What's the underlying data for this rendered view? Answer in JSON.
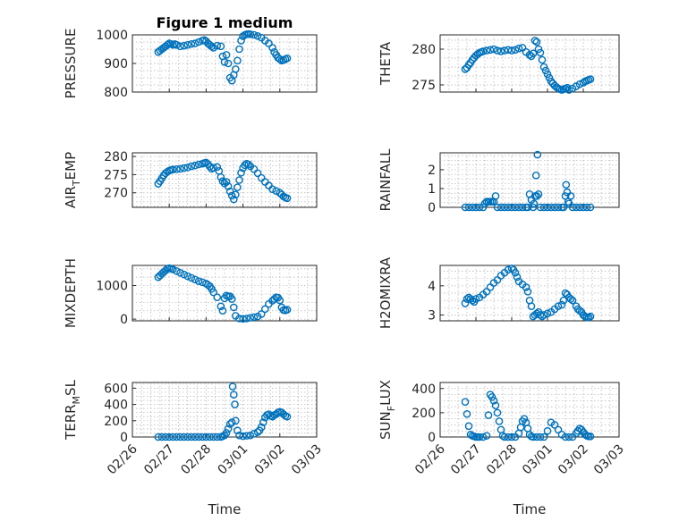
{
  "figure": {
    "title": "Figure 1 medium",
    "xlabel": "Time",
    "colors": {
      "marker": "#0072BD",
      "axis": "#262626",
      "grid": "#b0b0b0"
    },
    "x_tick_labels": [
      "02/26",
      "02/27",
      "02/28",
      "03/01",
      "03/02",
      "03/03"
    ]
  },
  "chart_data": [
    {
      "type": "scatter",
      "ylabel": "PRESSURE",
      "title": "Figure 1 medium",
      "xlim": [
        0,
        5
      ],
      "ylim": [
        800,
        1000
      ],
      "yticks": [
        800,
        900,
        1000
      ],
      "grid": true,
      "x": [
        0.7,
        0.75,
        0.8,
        0.85,
        0.9,
        0.95,
        1.0,
        1.05,
        1.1,
        1.15,
        1.2,
        1.3,
        1.4,
        1.5,
        1.6,
        1.7,
        1.8,
        1.9,
        1.95,
        2.0,
        2.05,
        2.1,
        2.15,
        2.2,
        2.3,
        2.4,
        2.45,
        2.5,
        2.55,
        2.6,
        2.65,
        2.7,
        2.75,
        2.8,
        2.85,
        2.9,
        2.95,
        3.0,
        3.05,
        3.1,
        3.15,
        3.2,
        3.3,
        3.4,
        3.5,
        3.6,
        3.7,
        3.8,
        3.85,
        3.9,
        3.95,
        4.0,
        4.05,
        4.1,
        4.15,
        4.2
      ],
      "y": [
        940,
        945,
        950,
        955,
        960,
        965,
        970,
        968,
        965,
        968,
        965,
        960,
        962,
        965,
        968,
        970,
        975,
        980,
        982,
        978,
        970,
        965,
        960,
        955,
        962,
        960,
        925,
        905,
        930,
        900,
        850,
        840,
        860,
        880,
        910,
        950,
        980,
        995,
        1000,
        1002,
        1003,
        1002,
        1000,
        996,
        990,
        980,
        970,
        955,
        940,
        930,
        920,
        915,
        910,
        912,
        915,
        918
      ]
    },
    {
      "type": "scatter",
      "ylabel": "THETA",
      "xlim": [
        0,
        5
      ],
      "ylim": [
        274,
        282
      ],
      "yticks": [
        275,
        280
      ],
      "grid": true,
      "x": [
        0.7,
        0.75,
        0.8,
        0.85,
        0.9,
        0.95,
        1.0,
        1.05,
        1.1,
        1.15,
        1.2,
        1.3,
        1.4,
        1.5,
        1.6,
        1.7,
        1.8,
        1.9,
        2.0,
        2.1,
        2.2,
        2.3,
        2.4,
        2.5,
        2.55,
        2.6,
        2.65,
        2.7,
        2.75,
        2.8,
        2.85,
        2.9,
        2.95,
        3.0,
        3.05,
        3.1,
        3.15,
        3.2,
        3.25,
        3.3,
        3.35,
        3.4,
        3.45,
        3.5,
        3.55,
        3.6,
        3.7,
        3.8,
        3.9,
        4.0,
        4.05,
        4.1,
        4.15,
        4.2
      ],
      "y": [
        277.2,
        277.4,
        277.8,
        278.1,
        278.5,
        278.8,
        279.1,
        279.3,
        279.5,
        279.6,
        279.7,
        279.8,
        279.9,
        280.0,
        279.8,
        279.7,
        279.8,
        279.9,
        279.8,
        279.9,
        280.1,
        280.2,
        279.6,
        279.2,
        279.0,
        279.4,
        281.2,
        281.0,
        280.0,
        279.5,
        278.5,
        277.5,
        277.0,
        276.5,
        276.0,
        275.5,
        275.2,
        274.9,
        274.7,
        274.5,
        274.4,
        274.3,
        274.4,
        274.5,
        274.6,
        274.3,
        274.5,
        274.8,
        275.1,
        275.3,
        275.5,
        275.6,
        275.7,
        275.8
      ]
    },
    {
      "type": "scatter",
      "ylabel": "AIR_TEMP",
      "xlim": [
        0,
        5
      ],
      "ylim": [
        266,
        281
      ],
      "yticks": [
        270,
        275,
        280
      ],
      "grid": true,
      "x": [
        0.7,
        0.75,
        0.8,
        0.85,
        0.9,
        0.95,
        1.0,
        1.05,
        1.1,
        1.2,
        1.3,
        1.4,
        1.5,
        1.6,
        1.7,
        1.8,
        1.9,
        1.95,
        2.0,
        2.05,
        2.1,
        2.15,
        2.2,
        2.3,
        2.35,
        2.4,
        2.45,
        2.5,
        2.55,
        2.6,
        2.65,
        2.7,
        2.75,
        2.8,
        2.85,
        2.9,
        2.95,
        3.0,
        3.05,
        3.1,
        3.15,
        3.2,
        3.3,
        3.4,
        3.5,
        3.6,
        3.7,
        3.8,
        3.9,
        4.0,
        4.05,
        4.1,
        4.15,
        4.2
      ],
      "y": [
        272.5,
        273.2,
        274.0,
        274.8,
        275.4,
        275.8,
        276.1,
        276.3,
        276.4,
        276.5,
        276.6,
        276.8,
        277.0,
        277.3,
        277.5,
        277.8,
        278.0,
        278.2,
        278.3,
        277.9,
        277.2,
        276.6,
        276.9,
        277.1,
        276.0,
        274.3,
        273.2,
        272.6,
        273.0,
        271.8,
        270.4,
        269.2,
        268.2,
        269.5,
        271.5,
        273.5,
        275.5,
        276.8,
        277.6,
        278.0,
        277.8,
        277.3,
        276.5,
        275.4,
        274.1,
        273.0,
        272.0,
        271.0,
        270.5,
        270.0,
        269.5,
        269.0,
        268.7,
        268.5
      ]
    },
    {
      "type": "scatter",
      "ylabel": "RAINFALL",
      "xlim": [
        0,
        5
      ],
      "ylim": [
        0,
        2.9
      ],
      "yticks": [
        0,
        1,
        2
      ],
      "grid": true,
      "x": [
        0.7,
        0.8,
        0.9,
        1.0,
        1.1,
        1.2,
        1.25,
        1.3,
        1.35,
        1.4,
        1.45,
        1.5,
        1.55,
        1.6,
        1.7,
        1.8,
        1.9,
        2.0,
        2.1,
        2.2,
        2.3,
        2.4,
        2.45,
        2.5,
        2.55,
        2.6,
        2.62,
        2.65,
        2.68,
        2.7,
        2.72,
        2.75,
        2.8,
        2.9,
        3.0,
        3.1,
        3.2,
        3.3,
        3.4,
        3.45,
        3.5,
        3.52,
        3.55,
        3.58,
        3.6,
        3.65,
        3.7,
        3.8,
        3.9,
        4.0,
        4.1,
        4.2
      ],
      "y": [
        0,
        0,
        0,
        0,
        0,
        0,
        0.2,
        0.3,
        0.3,
        0.3,
        0.3,
        0.3,
        0.6,
        0,
        0,
        0,
        0,
        0,
        0,
        0,
        0,
        0,
        0,
        0.7,
        0.4,
        0,
        0.2,
        0.6,
        1.7,
        0.6,
        2.8,
        0.7,
        0,
        0,
        0,
        0,
        0,
        0,
        0,
        0,
        0.6,
        1.2,
        0.8,
        0.3,
        0.2,
        0.6,
        0,
        0,
        0,
        0,
        0,
        0
      ]
    },
    {
      "type": "scatter",
      "ylabel": "MIXDEPTH",
      "xlim": [
        0,
        5
      ],
      "ylim": [
        -50,
        1600
      ],
      "yticks": [
        0,
        1000
      ],
      "grid": true,
      "x": [
        0.7,
        0.75,
        0.8,
        0.85,
        0.9,
        0.95,
        1.0,
        1.05,
        1.1,
        1.2,
        1.3,
        1.4,
        1.5,
        1.6,
        1.7,
        1.8,
        1.9,
        2.0,
        2.05,
        2.1,
        2.15,
        2.2,
        2.3,
        2.4,
        2.45,
        2.5,
        2.55,
        2.6,
        2.65,
        2.7,
        2.75,
        2.8,
        2.9,
        3.0,
        3.1,
        3.2,
        3.3,
        3.4,
        3.5,
        3.6,
        3.7,
        3.8,
        3.85,
        3.9,
        3.95,
        4.0,
        4.05,
        4.1,
        4.15,
        4.2
      ],
      "y": [
        1250,
        1300,
        1350,
        1400,
        1450,
        1500,
        1520,
        1500,
        1480,
        1430,
        1380,
        1330,
        1280,
        1230,
        1180,
        1130,
        1100,
        1060,
        1020,
        980,
        900,
        800,
        650,
        380,
        250,
        620,
        700,
        680,
        680,
        600,
        350,
        100,
        20,
        10,
        20,
        40,
        60,
        80,
        150,
        300,
        450,
        550,
        600,
        650,
        640,
        560,
        350,
        270,
        260,
        280
      ]
    },
    {
      "type": "scatter",
      "ylabel": "H2OMIXRA",
      "xlim": [
        0,
        5
      ],
      "ylim": [
        2.8,
        4.7
      ],
      "yticks": [
        3,
        4
      ],
      "grid": true,
      "x": [
        0.7,
        0.75,
        0.8,
        0.85,
        0.9,
        0.95,
        1.0,
        1.1,
        1.2,
        1.3,
        1.4,
        1.5,
        1.6,
        1.7,
        1.8,
        1.9,
        2.0,
        2.05,
        2.1,
        2.15,
        2.2,
        2.3,
        2.4,
        2.45,
        2.5,
        2.55,
        2.6,
        2.65,
        2.7,
        2.75,
        2.8,
        2.85,
        2.9,
        3.0,
        3.1,
        3.2,
        3.3,
        3.4,
        3.45,
        3.5,
        3.55,
        3.6,
        3.65,
        3.7,
        3.8,
        3.85,
        3.9,
        3.95,
        4.0,
        4.05,
        4.1,
        4.15,
        4.2
      ],
      "y": [
        3.4,
        3.55,
        3.6,
        3.55,
        3.5,
        3.45,
        3.55,
        3.6,
        3.7,
        3.8,
        3.95,
        4.1,
        4.2,
        4.35,
        4.45,
        4.55,
        4.6,
        4.55,
        4.45,
        4.3,
        4.15,
        4.05,
        3.95,
        3.8,
        3.5,
        3.3,
        2.95,
        3.0,
        3.05,
        3.1,
        3.0,
        2.95,
        3.0,
        3.05,
        3.1,
        3.2,
        3.3,
        3.35,
        3.5,
        3.75,
        3.7,
        3.6,
        3.55,
        3.5,
        3.3,
        3.2,
        3.15,
        3.1,
        3.0,
        2.95,
        2.92,
        2.92,
        2.95
      ]
    },
    {
      "type": "scatter",
      "ylabel": "TERR_MSL",
      "xlim": [
        0,
        5
      ],
      "ylim": [
        0,
        670
      ],
      "yticks": [
        0,
        200,
        400,
        600
      ],
      "grid": true,
      "x": [
        0.7,
        0.8,
        0.9,
        1.0,
        1.1,
        1.2,
        1.3,
        1.4,
        1.5,
        1.6,
        1.7,
        1.8,
        1.9,
        2.0,
        2.1,
        2.2,
        2.3,
        2.4,
        2.45,
        2.5,
        2.55,
        2.6,
        2.65,
        2.7,
        2.72,
        2.75,
        2.78,
        2.8,
        2.85,
        2.9,
        3.0,
        3.1,
        3.2,
        3.3,
        3.4,
        3.45,
        3.5,
        3.55,
        3.6,
        3.65,
        3.7,
        3.75,
        3.8,
        3.85,
        3.9,
        3.95,
        4.0,
        4.05,
        4.1,
        4.15,
        4.2
      ],
      "y": [
        0,
        0,
        0,
        0,
        0,
        0,
        0,
        0,
        0,
        0,
        0,
        0,
        0,
        0,
        0,
        0,
        0,
        0,
        10,
        20,
        50,
        100,
        160,
        180,
        620,
        520,
        400,
        200,
        80,
        20,
        10,
        15,
        20,
        40,
        60,
        80,
        120,
        180,
        240,
        270,
        280,
        260,
        250,
        270,
        280,
        300,
        310,
        300,
        280,
        260,
        250
      ]
    },
    {
      "type": "scatter",
      "ylabel": "SUN_FLUX",
      "xlim": [
        0,
        5
      ],
      "ylim": [
        0,
        450
      ],
      "yticks": [
        0,
        200,
        400
      ],
      "grid": true,
      "x": [
        0.7,
        0.75,
        0.8,
        0.85,
        0.9,
        0.95,
        1.0,
        1.05,
        1.1,
        1.2,
        1.3,
        1.35,
        1.4,
        1.45,
        1.5,
        1.55,
        1.6,
        1.65,
        1.7,
        1.75,
        1.8,
        1.9,
        2.0,
        2.1,
        2.2,
        2.25,
        2.3,
        2.35,
        2.4,
        2.45,
        2.5,
        2.55,
        2.6,
        2.7,
        2.8,
        2.9,
        3.0,
        3.1,
        3.2,
        3.3,
        3.4,
        3.5,
        3.6,
        3.7,
        3.8,
        3.85,
        3.9,
        3.95,
        4.0,
        4.05,
        4.1,
        4.15,
        4.2
      ],
      "y": [
        290,
        190,
        90,
        20,
        10,
        5,
        0,
        0,
        0,
        0,
        10,
        180,
        350,
        330,
        300,
        260,
        200,
        130,
        60,
        10,
        0,
        0,
        0,
        0,
        30,
        80,
        130,
        150,
        120,
        70,
        20,
        5,
        0,
        0,
        0,
        0,
        50,
        120,
        100,
        60,
        20,
        0,
        0,
        0,
        30,
        50,
        70,
        60,
        40,
        20,
        10,
        5,
        5
      ]
    }
  ]
}
